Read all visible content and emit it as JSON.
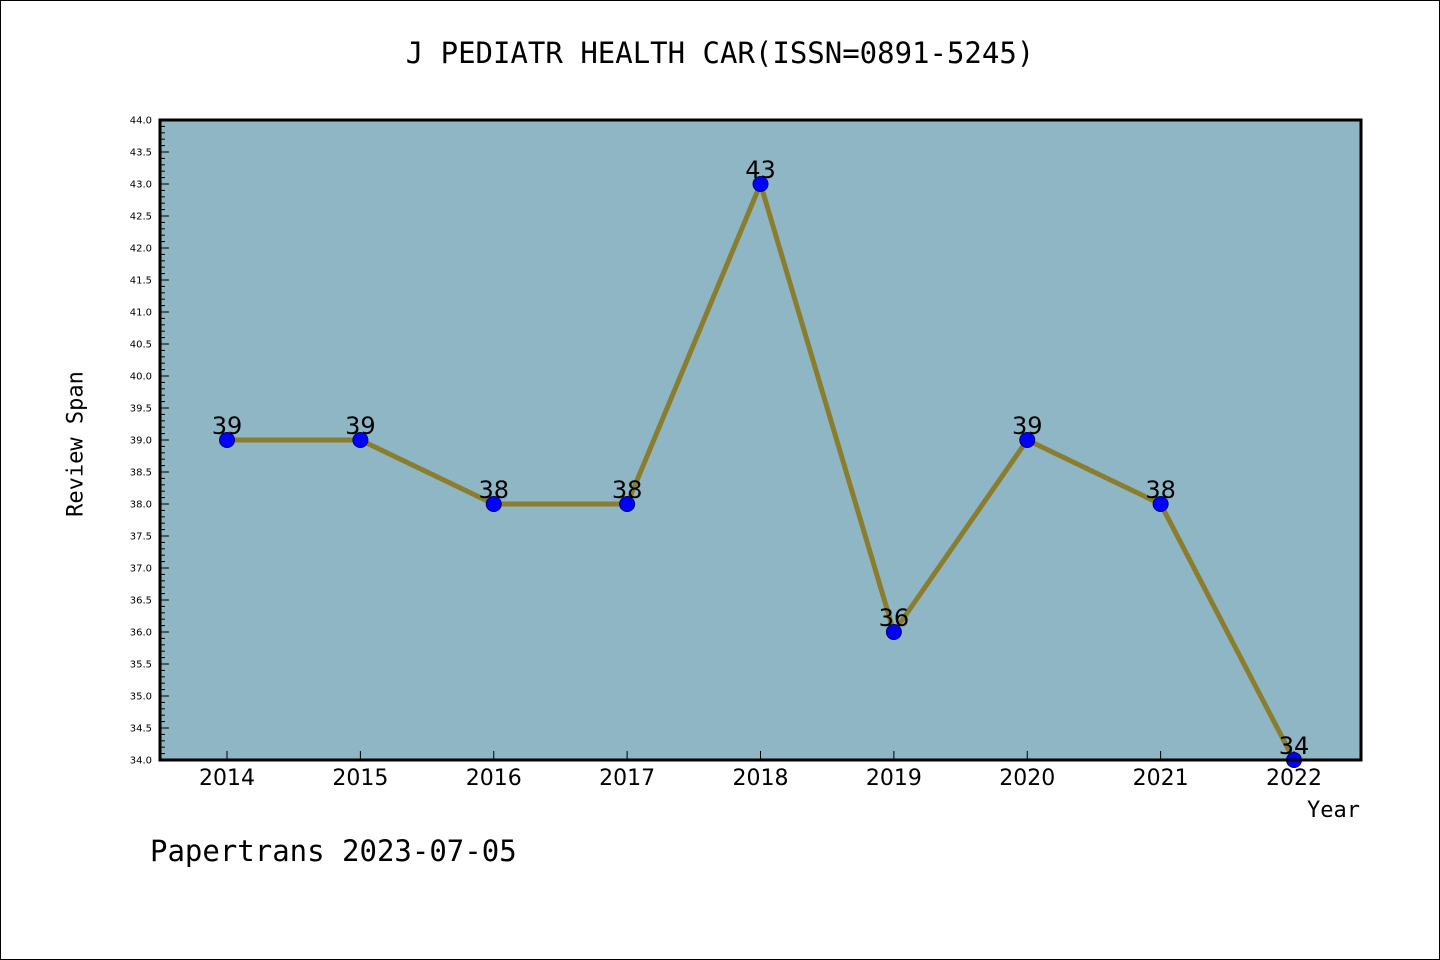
{
  "chart_data": {
    "type": "line",
    "title": "J PEDIATR HEALTH CAR(ISSN=0891-5245)",
    "xlabel": "Year",
    "ylabel": "Review Span",
    "categories": [
      "2014",
      "2015",
      "2016",
      "2017",
      "2018",
      "2019",
      "2020",
      "2021",
      "2022"
    ],
    "values": [
      39,
      39,
      38,
      38,
      43,
      36,
      39,
      38,
      34
    ],
    "data_labels": [
      "39",
      "39",
      "38",
      "38",
      "43",
      "36",
      "39",
      "38",
      "34"
    ],
    "ylim": [
      34.0,
      44.0
    ],
    "y_tick_step": 0.5,
    "y_tick_labels": [
      "34.0",
      "34.5",
      "35.0",
      "35.5",
      "36.0",
      "36.5",
      "37.0",
      "37.5",
      "38.0",
      "38.5",
      "39.0",
      "39.5",
      "40.0",
      "40.5",
      "41.0",
      "41.5",
      "42.0",
      "42.5",
      "43.0",
      "43.5",
      "44.0"
    ],
    "grid": false,
    "colors": {
      "plot_background": "#8fb6c4",
      "line": "#8b7d2e",
      "marker": "#0000ff",
      "marker_edge": "#000066"
    }
  },
  "footer": "Papertrans 2023-07-05"
}
